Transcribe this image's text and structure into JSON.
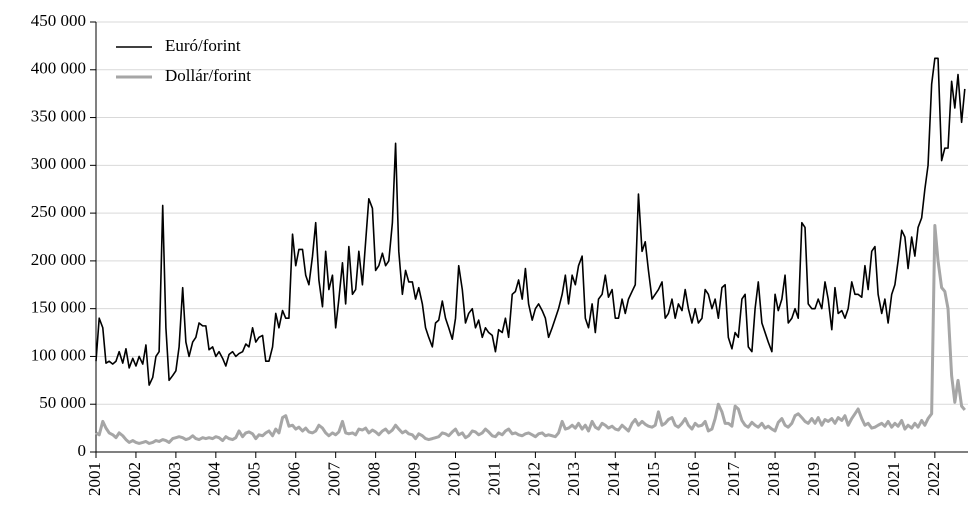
{
  "chart_data": {
    "type": "line",
    "x": [
      2001,
      2001.08,
      2001.17,
      2001.25,
      2001.33,
      2001.42,
      2001.5,
      2001.58,
      2001.67,
      2001.75,
      2001.83,
      2001.92,
      2002,
      2002.08,
      2002.17,
      2002.25,
      2002.33,
      2002.42,
      2002.5,
      2002.58,
      2002.67,
      2002.75,
      2002.83,
      2002.92,
      2003,
      2003.08,
      2003.17,
      2003.25,
      2003.33,
      2003.42,
      2003.5,
      2003.58,
      2003.67,
      2003.75,
      2003.83,
      2003.92,
      2004,
      2004.08,
      2004.17,
      2004.25,
      2004.33,
      2004.42,
      2004.5,
      2004.58,
      2004.67,
      2004.75,
      2004.83,
      2004.92,
      2005,
      2005.08,
      2005.17,
      2005.25,
      2005.33,
      2005.42,
      2005.5,
      2005.58,
      2005.67,
      2005.75,
      2005.83,
      2005.92,
      2006,
      2006.08,
      2006.17,
      2006.25,
      2006.33,
      2006.42,
      2006.5,
      2006.58,
      2006.67,
      2006.75,
      2006.83,
      2006.92,
      2007,
      2007.08,
      2007.17,
      2007.25,
      2007.33,
      2007.42,
      2007.5,
      2007.58,
      2007.67,
      2007.75,
      2007.83,
      2007.92,
      2008,
      2008.08,
      2008.17,
      2008.25,
      2008.33,
      2008.42,
      2008.5,
      2008.58,
      2008.67,
      2008.75,
      2008.83,
      2008.92,
      2009,
      2009.08,
      2009.17,
      2009.25,
      2009.33,
      2009.42,
      2009.5,
      2009.58,
      2009.67,
      2009.75,
      2009.83,
      2009.92,
      2010,
      2010.08,
      2010.17,
      2010.25,
      2010.33,
      2010.42,
      2010.5,
      2010.58,
      2010.67,
      2010.75,
      2010.83,
      2010.92,
      2011,
      2011.08,
      2011.17,
      2011.25,
      2011.33,
      2011.42,
      2011.5,
      2011.58,
      2011.67,
      2011.75,
      2011.83,
      2011.92,
      2012,
      2012.08,
      2012.17,
      2012.25,
      2012.33,
      2012.42,
      2012.5,
      2012.58,
      2012.67,
      2012.75,
      2012.83,
      2012.92,
      2013,
      2013.08,
      2013.17,
      2013.25,
      2013.33,
      2013.42,
      2013.5,
      2013.58,
      2013.67,
      2013.75,
      2013.83,
      2013.92,
      2014,
      2014.08,
      2014.17,
      2014.25,
      2014.33,
      2014.42,
      2014.5,
      2014.58,
      2014.67,
      2014.75,
      2014.83,
      2014.92,
      2015,
      2015.08,
      2015.17,
      2015.25,
      2015.33,
      2015.42,
      2015.5,
      2015.58,
      2015.67,
      2015.75,
      2015.83,
      2015.92,
      2016,
      2016.08,
      2016.17,
      2016.25,
      2016.33,
      2016.42,
      2016.5,
      2016.58,
      2016.67,
      2016.75,
      2016.83,
      2016.92,
      2017,
      2017.08,
      2017.17,
      2017.25,
      2017.33,
      2017.42,
      2017.5,
      2017.58,
      2017.67,
      2017.75,
      2017.83,
      2017.92,
      2018,
      2018.08,
      2018.17,
      2018.25,
      2018.33,
      2018.42,
      2018.5,
      2018.58,
      2018.67,
      2018.75,
      2018.83,
      2018.92,
      2019,
      2019.08,
      2019.17,
      2019.25,
      2019.33,
      2019.42,
      2019.5,
      2019.58,
      2019.67,
      2019.75,
      2019.83,
      2019.92,
      2020,
      2020.08,
      2020.17,
      2020.25,
      2020.33,
      2020.42,
      2020.5,
      2020.58,
      2020.67,
      2020.75,
      2020.83,
      2020.92,
      2021,
      2021.08,
      2021.17,
      2021.25,
      2021.33,
      2021.42,
      2021.5,
      2021.58,
      2021.67,
      2021.75,
      2021.83,
      2021.92,
      2022,
      2022.08,
      2022.17,
      2022.25,
      2022.33,
      2022.42,
      2022.5,
      2022.58,
      2022.67,
      2022.75
    ],
    "series": [
      {
        "name": "Euró/forint",
        "color": "#000000",
        "values": [
          95000,
          140000,
          130000,
          93000,
          95000,
          92000,
          95000,
          105000,
          93000,
          108000,
          88000,
          98000,
          90000,
          100000,
          92000,
          112000,
          70000,
          78000,
          100000,
          105000,
          258000,
          130000,
          75000,
          80000,
          85000,
          110000,
          172000,
          115000,
          100000,
          115000,
          120000,
          135000,
          132000,
          132000,
          107000,
          110000,
          100000,
          105000,
          98000,
          90000,
          102000,
          105000,
          100000,
          103000,
          105000,
          113000,
          110000,
          130000,
          115000,
          120000,
          122000,
          95000,
          95000,
          110000,
          145000,
          130000,
          148000,
          140000,
          140000,
          228000,
          195000,
          212000,
          212000,
          185000,
          175000,
          205000,
          240000,
          180000,
          152000,
          210000,
          170000,
          185000,
          130000,
          160000,
          198000,
          155000,
          215000,
          165000,
          170000,
          210000,
          175000,
          220000,
          265000,
          255000,
          190000,
          195000,
          208000,
          195000,
          200000,
          240000,
          323000,
          210000,
          165000,
          190000,
          178000,
          178000,
          160000,
          172000,
          155000,
          130000,
          120000,
          110000,
          135000,
          138000,
          158000,
          140000,
          130000,
          118000,
          140000,
          195000,
          170000,
          135000,
          145000,
          150000,
          130000,
          138000,
          120000,
          130000,
          125000,
          122000,
          105000,
          128000,
          125000,
          140000,
          120000,
          165000,
          168000,
          180000,
          160000,
          192000,
          155000,
          138000,
          150000,
          155000,
          148000,
          140000,
          120000,
          130000,
          140000,
          150000,
          165000,
          185000,
          155000,
          185000,
          175000,
          195000,
          205000,
          140000,
          130000,
          155000,
          125000,
          160000,
          165000,
          185000,
          162000,
          170000,
          140000,
          140000,
          160000,
          145000,
          160000,
          168000,
          175000,
          270000,
          210000,
          220000,
          190000,
          160000,
          165000,
          170000,
          178000,
          140000,
          145000,
          160000,
          140000,
          155000,
          148000,
          170000,
          150000,
          135000,
          150000,
          135000,
          140000,
          170000,
          165000,
          150000,
          160000,
          140000,
          172000,
          175000,
          120000,
          108000,
          125000,
          120000,
          160000,
          165000,
          110000,
          105000,
          150000,
          178000,
          135000,
          125000,
          115000,
          105000,
          165000,
          148000,
          160000,
          185000,
          135000,
          140000,
          150000,
          140000,
          240000,
          235000,
          155000,
          150000,
          150000,
          160000,
          150000,
          178000,
          160000,
          128000,
          172000,
          145000,
          148000,
          140000,
          150000,
          178000,
          165000,
          165000,
          162000,
          195000,
          170000,
          210000,
          215000,
          165000,
          145000,
          160000,
          135000,
          165000,
          175000,
          200000,
          232000,
          225000,
          192000,
          225000,
          205000,
          235000,
          245000,
          275000,
          300000,
          385000,
          412000,
          412000,
          305000,
          318000,
          318000,
          388000,
          360000,
          395000,
          345000,
          380000
        ]
      },
      {
        "name": "Dollár/forint",
        "color": "#a6a6a6",
        "values": [
          20000,
          18000,
          32000,
          25000,
          20000,
          18000,
          15000,
          20000,
          17000,
          13000,
          10000,
          12000,
          10000,
          9000,
          10000,
          11000,
          9000,
          10000,
          12000,
          11000,
          13000,
          12000,
          10000,
          14000,
          15000,
          16000,
          15000,
          13000,
          14000,
          17000,
          14000,
          13000,
          15000,
          14000,
          15000,
          14000,
          16000,
          15000,
          12000,
          16000,
          14000,
          13000,
          15000,
          22000,
          16000,
          20000,
          21000,
          19000,
          14000,
          18000,
          17000,
          20000,
          22000,
          17000,
          24000,
          20000,
          36000,
          38000,
          27000,
          28000,
          24000,
          26000,
          22000,
          25000,
          21000,
          20000,
          22000,
          28000,
          25000,
          20000,
          17000,
          20000,
          18000,
          21000,
          32000,
          20000,
          19000,
          20000,
          18000,
          24000,
          23000,
          25000,
          20000,
          23000,
          21000,
          18000,
          22000,
          24000,
          20000,
          23000,
          28000,
          24000,
          20000,
          22000,
          19000,
          18000,
          14000,
          19000,
          17000,
          14000,
          13000,
          14000,
          15000,
          16000,
          20000,
          19000,
          17000,
          21000,
          24000,
          18000,
          20000,
          15000,
          17000,
          22000,
          21000,
          18000,
          20000,
          24000,
          21000,
          17000,
          16000,
          20000,
          18000,
          22000,
          24000,
          19000,
          20000,
          18000,
          17000,
          19000,
          20000,
          18000,
          16000,
          19000,
          20000,
          17000,
          18000,
          17000,
          16000,
          20000,
          32000,
          24000,
          25000,
          28000,
          25000,
          30000,
          24000,
          28000,
          22000,
          32000,
          26000,
          24000,
          30000,
          28000,
          25000,
          27000,
          24000,
          23000,
          28000,
          25000,
          22000,
          30000,
          34000,
          28000,
          32000,
          29000,
          27000,
          26000,
          28000,
          42000,
          28000,
          30000,
          34000,
          36000,
          28000,
          26000,
          30000,
          35000,
          28000,
          24000,
          30000,
          27000,
          28000,
          32000,
          22000,
          24000,
          35000,
          50000,
          42000,
          30000,
          30000,
          27000,
          48000,
          45000,
          33000,
          28000,
          26000,
          31000,
          28000,
          26000,
          30000,
          25000,
          27000,
          24000,
          22000,
          31000,
          35000,
          28000,
          26000,
          30000,
          38000,
          40000,
          36000,
          32000,
          30000,
          35000,
          30000,
          36000,
          28000,
          34000,
          32000,
          35000,
          30000,
          36000,
          33000,
          38000,
          28000,
          35000,
          40000,
          45000,
          35000,
          28000,
          30000,
          25000,
          26000,
          28000,
          30000,
          27000,
          32000,
          26000,
          30000,
          27000,
          33000,
          24000,
          28000,
          25000,
          30000,
          26000,
          33000,
          28000,
          35000,
          40000,
          237000,
          200000,
          172000,
          168000,
          150000,
          80000,
          52000,
          75000,
          48000,
          44000
        ]
      }
    ],
    "xlim": [
      2001,
      2022.83
    ],
    "xticks": [
      2001,
      2002,
      2003,
      2004,
      2005,
      2006,
      2007,
      2008,
      2009,
      2010,
      2011,
      2012,
      2013,
      2014,
      2015,
      2016,
      2017,
      2018,
      2019,
      2020,
      2021,
      2022
    ],
    "ylim": [
      0,
      450000
    ],
    "yticks": [
      0,
      {
        "value": 50000,
        "label": "50 000"
      },
      {
        "value": 100000,
        "label": "100 000"
      },
      {
        "value": 150000,
        "label": "150 000"
      },
      {
        "value": 200000,
        "label": "200 000"
      },
      {
        "value": 250000,
        "label": "250 000"
      },
      {
        "value": 300000,
        "label": "300 000"
      },
      {
        "value": 350000,
        "label": "350 000"
      },
      {
        "value": 400000,
        "label": "400 000"
      },
      {
        "value": 450000,
        "label": "450 000"
      }
    ],
    "grid": true,
    "legend": "upper-left"
  }
}
